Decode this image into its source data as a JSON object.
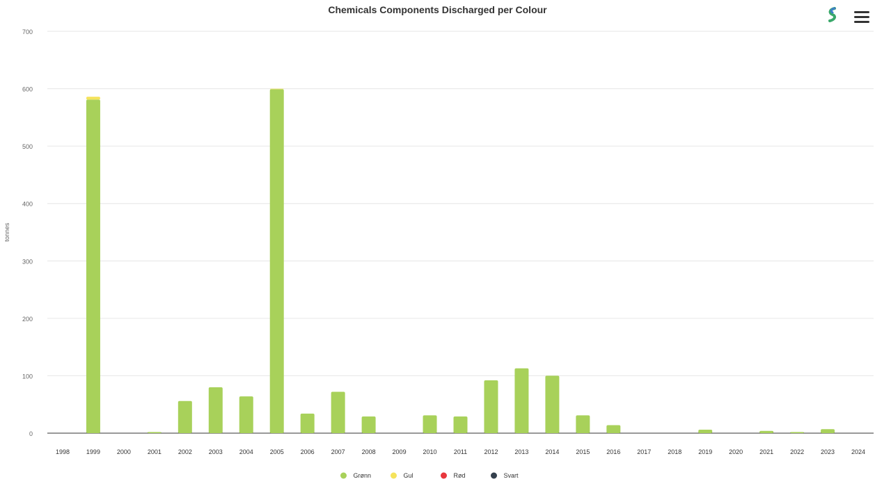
{
  "chart_data": {
    "type": "bar",
    "title": "Chemicals Components Discharged per Colour",
    "ylabel": "tonnes",
    "xlabel": "",
    "ylim": [
      0,
      700
    ],
    "yticks": [
      0,
      100,
      200,
      300,
      400,
      500,
      600,
      700
    ],
    "grid": true,
    "stacked": true,
    "legend_position": "bottom-center",
    "categories": [
      "1998",
      "1999",
      "2000",
      "2001",
      "2002",
      "2003",
      "2004",
      "2005",
      "2006",
      "2007",
      "2008",
      "2009",
      "2010",
      "2011",
      "2012",
      "2013",
      "2014",
      "2015",
      "2016",
      "2017",
      "2018",
      "2019",
      "2020",
      "2021",
      "2022",
      "2023",
      "2024"
    ],
    "series": [
      {
        "name": "Grønn",
        "color": "#a8d15a",
        "values": [
          0,
          581,
          0,
          2,
          56,
          80,
          64,
          599,
          34,
          72,
          29,
          0,
          31,
          29,
          92,
          113,
          100,
          31,
          14,
          0,
          0,
          6,
          0,
          4,
          2,
          7,
          0
        ]
      },
      {
        "name": "Gul",
        "color": "#f5e35c",
        "values": [
          0,
          5,
          0,
          0,
          0,
          0,
          0,
          1,
          0,
          0,
          0,
          0,
          0,
          0,
          0,
          0,
          0,
          0,
          0,
          0,
          0,
          0,
          0,
          0,
          0,
          0,
          0
        ]
      },
      {
        "name": "Rød",
        "color": "#e8373d",
        "values": [
          0,
          0,
          0,
          0,
          0,
          0,
          0,
          0,
          0,
          0,
          0,
          0,
          0,
          0,
          0,
          0,
          0,
          0,
          0,
          0,
          0,
          0,
          0,
          0,
          0,
          0,
          0
        ]
      },
      {
        "name": "Svart",
        "color": "#34404d",
        "values": [
          0,
          0,
          0,
          0,
          0,
          0,
          0,
          0,
          0,
          0,
          0,
          0,
          0,
          0,
          0,
          0,
          0,
          0,
          0,
          0,
          0,
          0,
          0,
          0,
          0,
          0,
          0
        ]
      }
    ]
  },
  "toolbar": {
    "menu_icon": "hamburger-menu-icon",
    "logo_icon": "logo-icon"
  }
}
